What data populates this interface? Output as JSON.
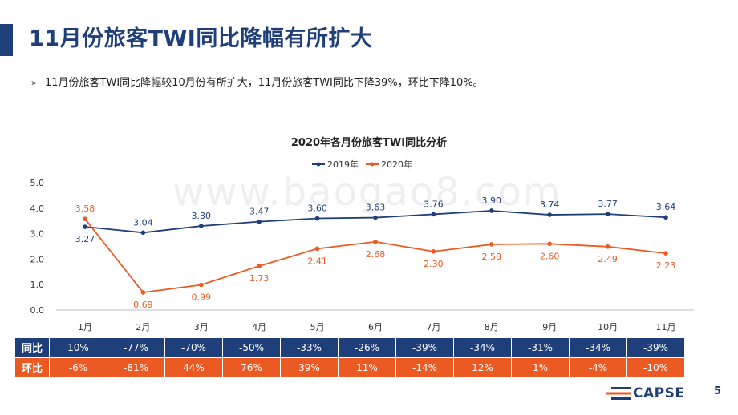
{
  "header": {
    "title": "11月份旅客TWI同比降幅有所扩大",
    "summary": "11月份旅客TWI同比降幅较10月份有所扩大，11月份旅客TWI同比下降39%，环比下降10%。",
    "bullet": "➢"
  },
  "chart_data": {
    "type": "line",
    "title": "2020年各月份旅客TWI同比分析",
    "categories": [
      "1月",
      "2月",
      "3月",
      "4月",
      "5月",
      "6月",
      "7月",
      "8月",
      "9月",
      "10月",
      "11月"
    ],
    "series": [
      {
        "name": "2019年",
        "color": "#1f3f7a",
        "values": [
          3.27,
          3.04,
          3.3,
          3.47,
          3.6,
          3.63,
          3.76,
          3.9,
          3.74,
          3.77,
          3.64
        ]
      },
      {
        "name": "2020年",
        "color": "#ec5a24",
        "values": [
          3.58,
          0.69,
          0.99,
          1.73,
          2.41,
          2.68,
          2.3,
          2.58,
          2.6,
          2.49,
          2.23
        ]
      }
    ],
    "ylim": [
      0,
      5
    ],
    "yticks": [
      "0.0",
      "1.0",
      "2.0",
      "3.0",
      "4.0",
      "5.0"
    ],
    "xlabel": "",
    "ylabel": "",
    "grid": false,
    "legend": "top-center"
  },
  "watermark": "www.baogao8.com",
  "table": {
    "yoy": {
      "label": "同比",
      "values": [
        "10%",
        "-77%",
        "-70%",
        "-50%",
        "-33%",
        "-26%",
        "-39%",
        "-34%",
        "-31%",
        "-34%",
        "-39%"
      ]
    },
    "mom": {
      "label": "环比",
      "values": [
        "-6%",
        "-81%",
        "44%",
        "76%",
        "39%",
        "11%",
        "-14%",
        "12%",
        "1%",
        "-4%",
        "-10%"
      ]
    }
  },
  "footer": {
    "brand": "CAPSE",
    "page": "5"
  }
}
